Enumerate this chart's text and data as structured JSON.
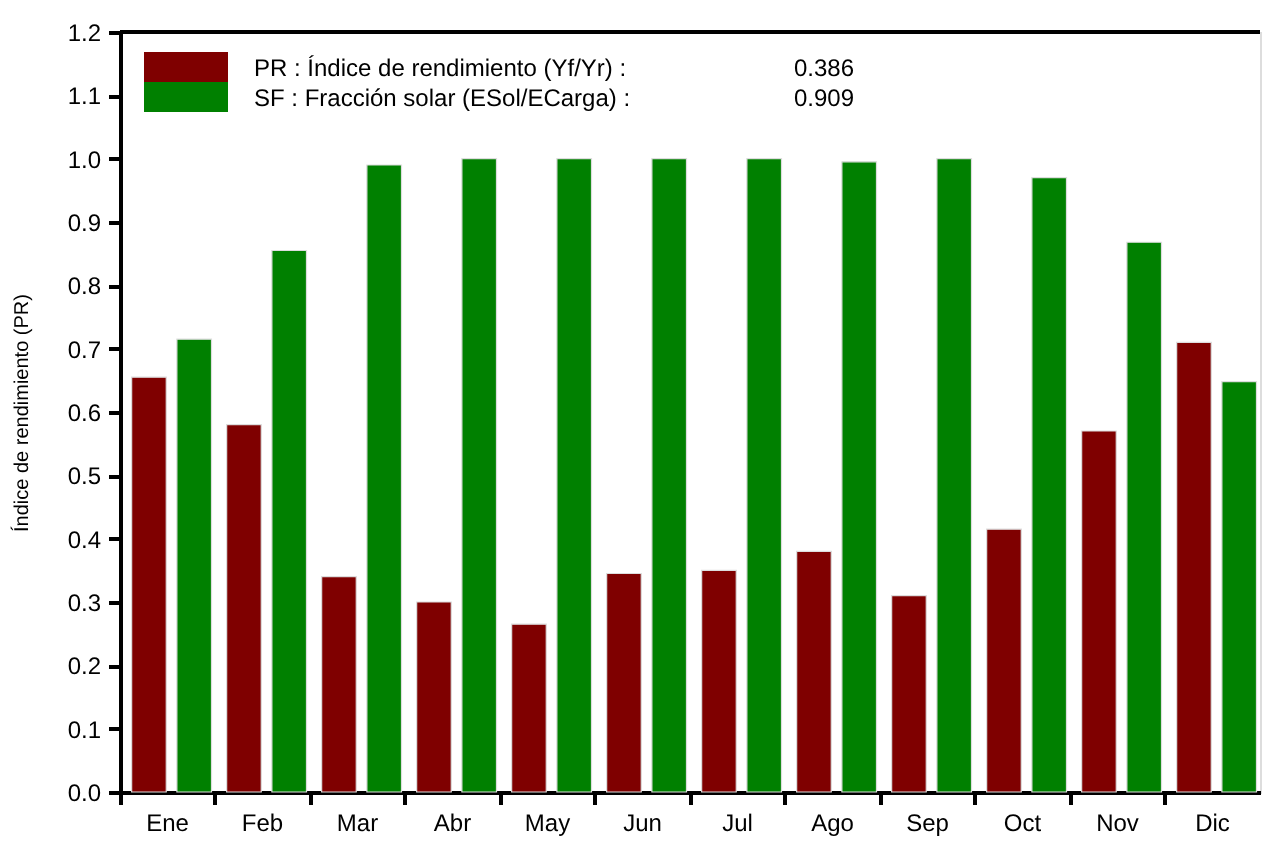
{
  "chart_data": {
    "type": "bar",
    "ylabel": "Índice   de   rendimiento   (PR)",
    "categories": [
      "Ene",
      "Feb",
      "Mar",
      "Abr",
      "May",
      "Jun",
      "Jul",
      "Ago",
      "Sep",
      "Oct",
      "Nov",
      "Dic"
    ],
    "series": [
      {
        "name": "PR : Índice de rendimiento (Yf/Yr) :",
        "color": "#7f0000",
        "values": [
          0.655,
          0.58,
          0.34,
          0.3,
          0.265,
          0.345,
          0.35,
          0.38,
          0.31,
          0.415,
          0.57,
          0.71
        ]
      },
      {
        "name": "SF : Fracción solar (ESol/ECarga) :",
        "color": "#008000",
        "values": [
          0.715,
          0.855,
          0.99,
          1.0,
          1.0,
          1.0,
          1.0,
          0.995,
          1.0,
          0.97,
          0.868,
          0.648
        ]
      }
    ],
    "annotations": [
      "0.386",
      "0.909"
    ],
    "ylim": [
      0,
      1.2
    ],
    "yticks": [
      {
        "value": 0,
        "label": "0.0"
      },
      {
        "value": 0.1,
        "label": "0.1"
      },
      {
        "value": 0.2,
        "label": "0.2"
      },
      {
        "value": 0.3,
        "label": "0.3"
      },
      {
        "value": 0.4,
        "label": "0.4"
      },
      {
        "value": 0.5,
        "label": "0.5"
      },
      {
        "value": 0.6,
        "label": "0.6"
      },
      {
        "value": 0.7,
        "label": "0.7"
      },
      {
        "value": 0.8,
        "label": "0.8"
      },
      {
        "value": 0.9,
        "label": "0.9"
      },
      {
        "value": 1.0,
        "label": "1.0"
      },
      {
        "value": 1.1,
        "label": "1.1"
      },
      {
        "value": 1.2,
        "label": "1.2"
      }
    ],
    "grid": false,
    "legend": "top left"
  }
}
